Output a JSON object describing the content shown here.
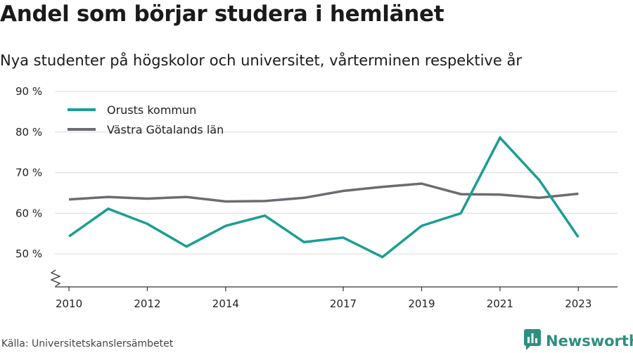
{
  "header": {
    "title": "Andel som börjar studera i hemlänet",
    "subtitle": "Nya studenter på högskolor och universitet, vårterminen respektive år"
  },
  "footer": {
    "source": "Källa: Universitetskanslersämbetet",
    "brand": "Newsworthy",
    "brand_icon": "newsworthy-logo-icon"
  },
  "colors": {
    "accent": "#1a9e93",
    "gray_series": "#6d6b72",
    "grid": "#d9d9d9",
    "brand": "#2c8f7f"
  },
  "chart_data": {
    "type": "line",
    "x": [
      2010,
      2011,
      2012,
      2013,
      2014,
      2015,
      2016,
      2017,
      2018,
      2019,
      2020,
      2021,
      2022,
      2023
    ],
    "x_tick_values": [
      2010,
      2012,
      2014,
      2017,
      2019,
      2021,
      2023
    ],
    "x_tick_labels": [
      "2010",
      "2012",
      "2014",
      "2017",
      "2019",
      "2021",
      "2023"
    ],
    "y_tick_values": [
      50,
      60,
      70,
      80,
      90
    ],
    "y_tick_labels": [
      "50 %",
      "60 %",
      "70 %",
      "80 %",
      "90 %"
    ],
    "ylim": [
      42,
      90
    ],
    "y_axis_break": true,
    "grid": true,
    "legend": "top-left",
    "series": [
      {
        "name": "Orusts kommun",
        "color": "#1a9e93",
        "values": [
          54.3,
          61.1,
          57.4,
          51.8,
          56.9,
          59.4,
          52.9,
          54.0,
          49.2,
          56.9,
          60.0,
          78.6,
          68.2,
          54.1
        ]
      },
      {
        "name": "Västra Götalands län",
        "color": "#6d6b72",
        "values": [
          63.4,
          64.0,
          63.6,
          64.0,
          62.9,
          63.0,
          63.8,
          65.5,
          66.5,
          67.3,
          64.7,
          64.6,
          63.8,
          64.8
        ]
      }
    ]
  }
}
